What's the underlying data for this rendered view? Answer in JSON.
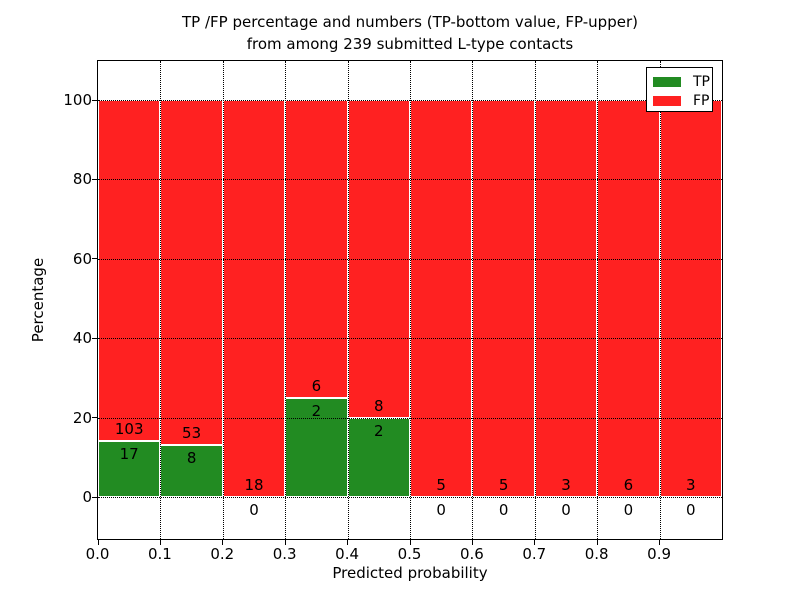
{
  "figure": {
    "title_line1": "TP /FP percentage and numbers (TP-bottom value, FP-upper)",
    "title_line2": "from among 239 submitted L-type contacts"
  },
  "chart_data": {
    "type": "bar",
    "subtype": "stacked-percentage",
    "title": "TP /FP percentage and numbers (TP-bottom value, FP-upper) from among 239 submitted L-type contacts",
    "xlabel": "Predicted probability",
    "ylabel": "Percentage",
    "categories": [
      "0.0-0.1",
      "0.1-0.2",
      "0.2-0.3",
      "0.3-0.4",
      "0.4-0.5",
      "0.5-0.6",
      "0.6-0.7",
      "0.7-0.8",
      "0.8-0.9",
      "0.9-1.0"
    ],
    "series": [
      {
        "name": "TP",
        "color": "#228b22",
        "values": [
          17,
          8,
          0,
          2,
          2,
          0,
          0,
          0,
          0,
          0
        ]
      },
      {
        "name": "FP",
        "color": "#ff2121",
        "values": [
          103,
          53,
          18,
          6,
          8,
          5,
          5,
          3,
          6,
          3
        ]
      }
    ],
    "tp_percent_of_bin": [
      14.2,
      13.1,
      0,
      25,
      20,
      0,
      0,
      0,
      0,
      0
    ],
    "total_contacts": 239,
    "xticks": [
      "0.0",
      "0.1",
      "0.2",
      "0.3",
      "0.4",
      "0.5",
      "0.6",
      "0.7",
      "0.8",
      "0.9"
    ],
    "yticks": [
      0,
      20,
      40,
      60,
      80,
      100
    ],
    "xlim": [
      0.0,
      1.0
    ],
    "ylim": [
      -11,
      110
    ],
    "grid": "dotted-black-over-bars",
    "legend": {
      "position": "upper-right",
      "entries": [
        "TP",
        "FP"
      ]
    }
  }
}
